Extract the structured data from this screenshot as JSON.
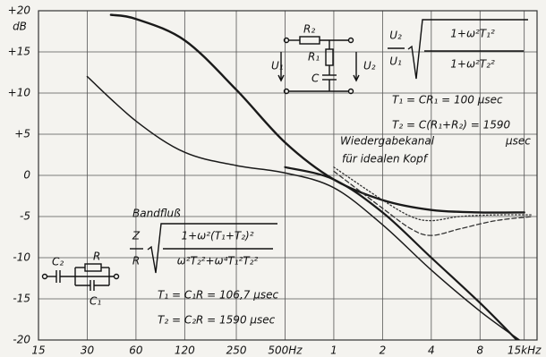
{
  "chart_data": {
    "type": "line",
    "y_unit": "dB",
    "xscale": "log",
    "xlim": [
      15,
      18000
    ],
    "xticks": [
      15,
      30,
      60,
      120,
      250,
      {
        "value": 500,
        "label": "500Hz"
      },
      {
        "value": 1000,
        "label": "1"
      },
      {
        "value": 2000,
        "label": "2"
      },
      {
        "value": 4000,
        "label": "4"
      },
      {
        "value": 8000,
        "label": "8"
      },
      {
        "value": 15000,
        "label": "15kHz"
      }
    ],
    "ylim": [
      -20,
      20
    ],
    "yticks": [
      {
        "value": 20,
        "label": "+20"
      },
      {
        "value": 15,
        "label": "+15"
      },
      {
        "value": 10,
        "label": "+10"
      },
      {
        "value": 5,
        "label": "+5"
      },
      0,
      -5,
      -10,
      -15,
      -20
    ],
    "grid": true,
    "series": [
      {
        "color": "#1a1a1a",
        "linewidth": 2.4,
        "style": "solid",
        "x": [
          42,
          60,
          120,
          250,
          500,
          1000,
          2000,
          4000,
          8000,
          15000
        ],
        "values": [
          19.5,
          19,
          16.4,
          10.4,
          4,
          -0.5,
          -3,
          -4.2,
          -4.5,
          -4.5
        ]
      },
      {
        "color": "#1a1a1a",
        "linewidth": 1.5,
        "style": "solid",
        "x": [
          30,
          60,
          120,
          250,
          500,
          1000,
          2000,
          4000,
          8000,
          14000
        ],
        "values": [
          12,
          6.6,
          2.8,
          1.2,
          0.3,
          -1.5,
          -6,
          -11.5,
          -16.5,
          -20
        ]
      },
      {
        "color": "#1a1a1a",
        "linewidth": 2.2,
        "style": "solid",
        "x": [
          500,
          1000,
          2000,
          4000,
          8000,
          13500
        ],
        "values": [
          1,
          -0.5,
          -4.5,
          -10,
          -15.5,
          -20
        ]
      },
      {
        "color": "#333333",
        "linewidth": 1.3,
        "style": "dashed",
        "x": [
          1000,
          2000,
          3000,
          4000,
          6000,
          10000,
          17000
        ],
        "values": [
          0.5,
          -4,
          -6.5,
          -7.3,
          -6.5,
          -5.5,
          -5
        ]
      },
      {
        "color": "#333333",
        "linewidth": 1.3,
        "style": "dotted",
        "x": [
          1000,
          2000,
          3000,
          4000,
          6000,
          10000,
          17000
        ],
        "values": [
          1,
          -3,
          -5,
          -5.5,
          -5,
          -4.8,
          -4.8
        ]
      }
    ],
    "annotations": [
      "R₂",
      "R₁",
      "C",
      "U₁",
      "U₂",
      "U₂",
      "U₁",
      "1+ω²T₁²",
      "1+ω²T₂²",
      "T₁ = CR₁ = 100 µsec",
      "T₂ = C(R₁+R₂) = 1590",
      "µsec",
      "Wiedergabekanal",
      "für idealen Kopf",
      "Bandfluß",
      "Z",
      "R",
      "1+ω²(T₁+T₂)²",
      "ω²T₂²+ω⁴T₁²T₂²",
      "C₂",
      "R",
      "C₁",
      "T₁ = C₁R = 106,7 µsec",
      "T₂ = C₂R = 1590 µsec"
    ]
  }
}
